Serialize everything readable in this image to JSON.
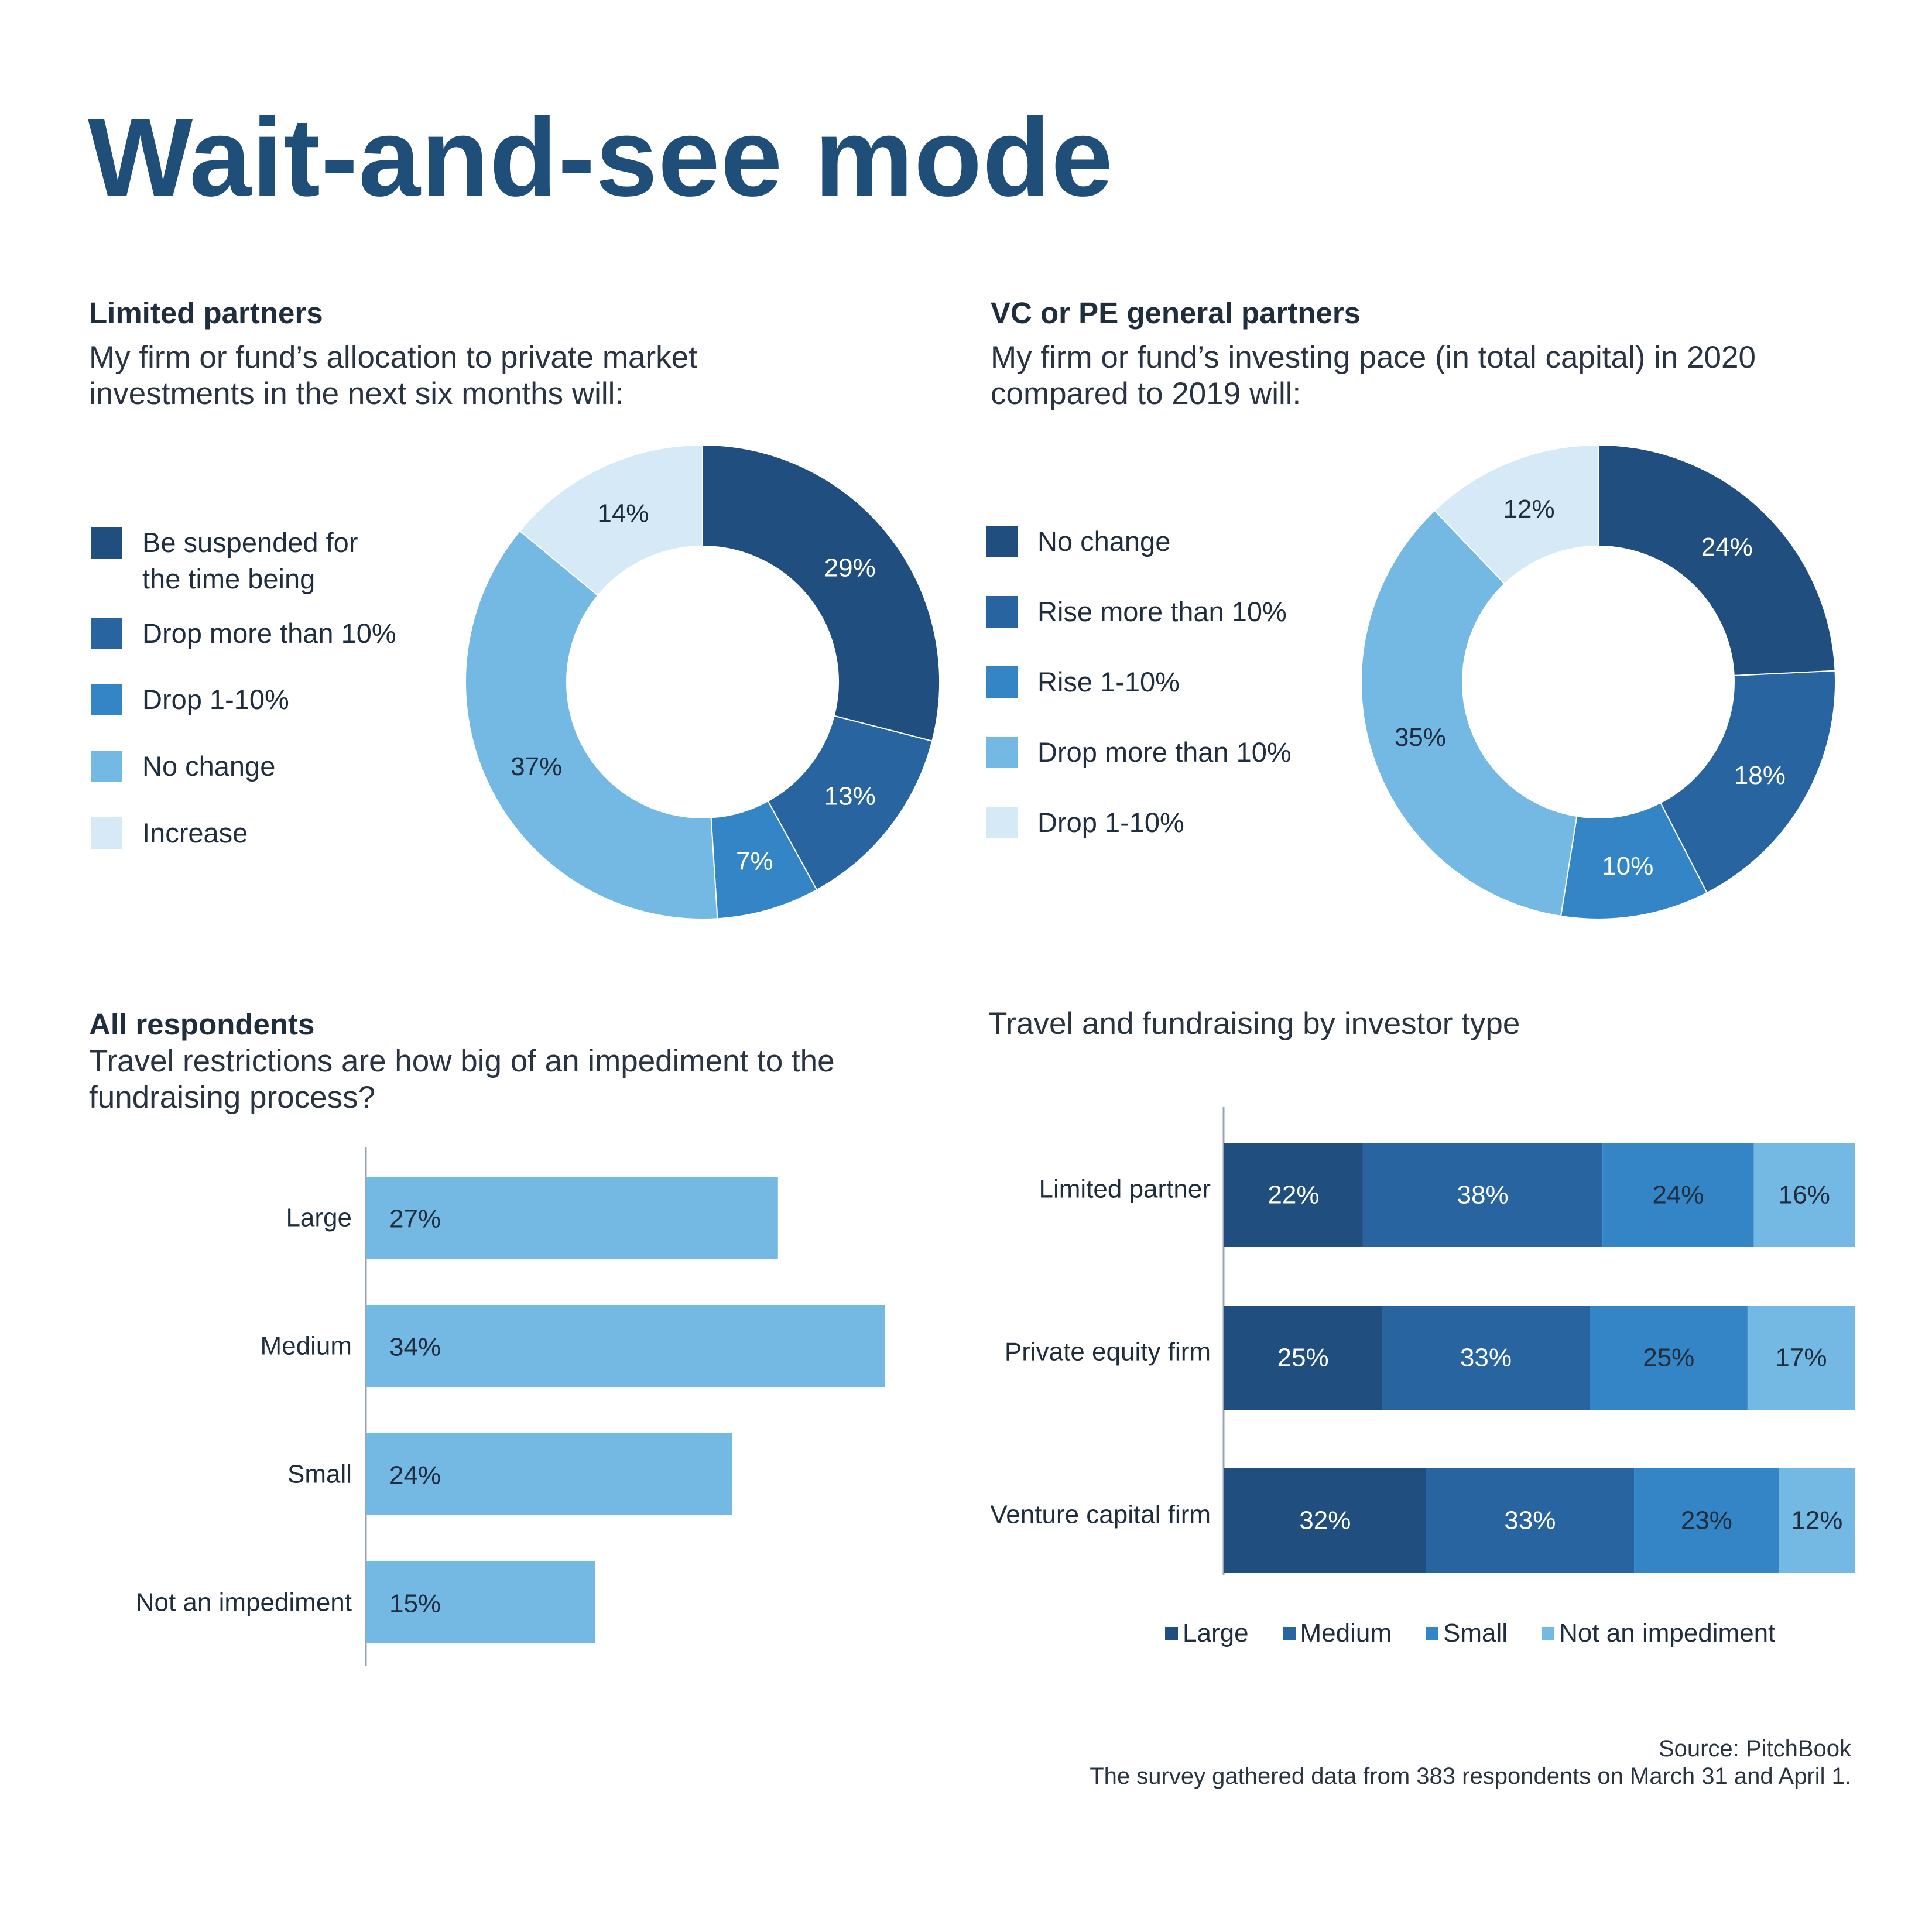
{
  "title": "Wait-and-see mode",
  "colors": {
    "c1": "#1f4e7f",
    "c2": "#2864a0",
    "c3": "#3385c6",
    "c4": "#74b8e4",
    "c5": "#d6e9f7"
  },
  "panel_lp": {
    "label": "Limited partners",
    "question": "My firm or fund’s allocation to private market investments in the next six months will:"
  },
  "panel_gp": {
    "label": "VC or PE general partners",
    "question": "My firm or fund’s investing pace (in total capital) in 2020 compared to 2019 will:"
  },
  "panel_all": {
    "label": "All respondents",
    "question": "Travel restrictions are how big of an impediment to the fundraising process?"
  },
  "panel_type": {
    "question": "Travel and fundraising by investor type"
  },
  "source": {
    "line1": "Source: PitchBook",
    "line2": "The survey gathered data from 383 respondents on March 31 and April 1."
  },
  "chart_data": [
    {
      "type": "pie",
      "donut": true,
      "title": "My firm or fund’s allocation to private market investments in the next six months will:",
      "legend_position": "left",
      "slices": [
        {
          "label": "Be suspended for the time being",
          "value": 29,
          "display": "29%"
        },
        {
          "label": "Drop more than 10%",
          "value": 13,
          "display": "13%"
        },
        {
          "label": "Drop 1-10%",
          "value": 7,
          "display": "7%"
        },
        {
          "label": "No change",
          "value": 37,
          "display": "37%"
        },
        {
          "label": "Increase",
          "value": 14,
          "display": "14%"
        }
      ]
    },
    {
      "type": "pie",
      "donut": true,
      "title": "My firm or fund’s investing pace (in total capital) in 2020 compared to 2019 will:",
      "legend_position": "left",
      "slices": [
        {
          "label": "No change",
          "value": 24,
          "display": "24%"
        },
        {
          "label": "Rise more than 10%",
          "value": 18,
          "display": "18%"
        },
        {
          "label": "Rise 1-10%",
          "value": 10,
          "display": "10%"
        },
        {
          "label": "Drop more than 10%",
          "value": 35,
          "display": "35%"
        },
        {
          "label": "Drop 1-10%",
          "value": 12,
          "display": "12%"
        }
      ]
    },
    {
      "type": "bar",
      "orientation": "horizontal",
      "title": "Travel restrictions are how big of an impediment to the fundraising process?",
      "categories": [
        "Large",
        "Medium",
        "Small",
        "Not an impediment"
      ],
      "values": [
        27,
        34,
        24,
        15
      ],
      "labels": [
        "27%",
        "34%",
        "24%",
        "15%"
      ],
      "xlim": [
        0,
        34
      ],
      "grid": false
    },
    {
      "type": "bar",
      "orientation": "horizontal",
      "stacked": true,
      "title": "Travel and fundraising by investor type",
      "categories": [
        "Limited partner",
        "Private equity firm",
        "Venture capital firm"
      ],
      "series": [
        {
          "name": "Large",
          "values": [
            22,
            25,
            32
          ],
          "labels": [
            "22%",
            "25%",
            "32%"
          ]
        },
        {
          "name": "Medium",
          "values": [
            38,
            33,
            33
          ],
          "labels": [
            "38%",
            "33%",
            "33%"
          ]
        },
        {
          "name": "Small",
          "values": [
            24,
            25,
            23
          ],
          "labels": [
            "24%",
            "25%",
            "23%"
          ]
        },
        {
          "name": "Not an impediment",
          "values": [
            16,
            17,
            12
          ],
          "labels": [
            "16%",
            "17%",
            "12%"
          ]
        }
      ],
      "legend_position": "bottom",
      "grid": false
    }
  ]
}
